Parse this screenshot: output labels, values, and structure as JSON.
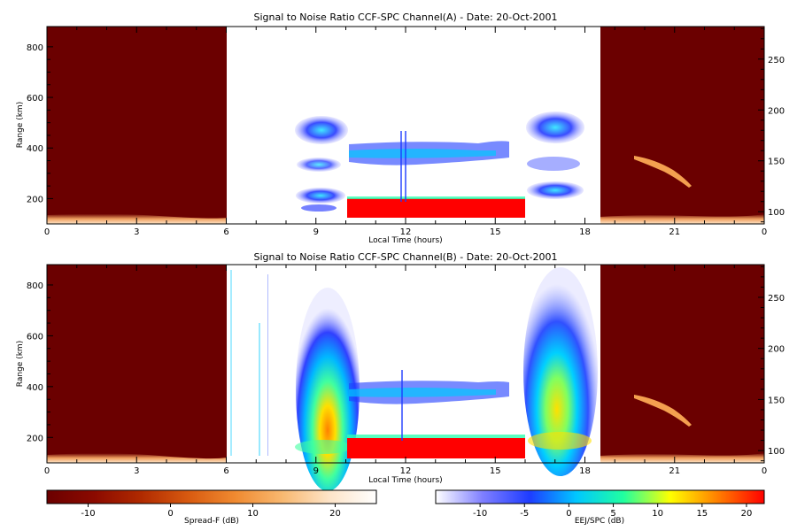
{
  "chart_data": [
    {
      "type": "heatmap",
      "title": "Signal to Noise Ratio CCF-SPC Channel(A) - Date: 20-Oct-2001",
      "xlabel": "Local Time (hours)",
      "ylabel": "Range (km)",
      "x_ticks": [
        "0",
        "3",
        "6",
        "9",
        "12",
        "15",
        "18",
        "21",
        "0"
      ],
      "y_ticks": [
        200,
        400,
        600,
        800
      ],
      "y_right_ticks": [
        100,
        150,
        200,
        250
      ],
      "xlim": [
        0,
        24
      ],
      "ylim": [
        100,
        880
      ],
      "y_right_lim": [
        88,
        282
      ],
      "segments": [
        {
          "name": "Spread-F",
          "x": [
            0,
            6
          ]
        },
        {
          "name": "EEJ/SPC",
          "x": [
            10,
            16
          ]
        },
        {
          "name": "Spread-F",
          "x": [
            18.6,
            24
          ]
        }
      ]
    },
    {
      "type": "heatmap",
      "title": "Signal to Noise Ratio CCF-SPC Channel(B) - Date: 20-Oct-2001",
      "xlabel": "Local Time (hours)",
      "ylabel": "Range (km)",
      "x_ticks": [
        "0",
        "3",
        "6",
        "9",
        "12",
        "15",
        "18",
        "21",
        "0"
      ],
      "y_ticks": [
        200,
        400,
        600,
        800
      ],
      "y_right_ticks": [
        100,
        150,
        200,
        250
      ],
      "xlim": [
        0,
        24
      ],
      "ylim": [
        100,
        880
      ],
      "y_right_lim": [
        88,
        282
      ],
      "segments": [
        {
          "name": "Spread-F",
          "x": [
            0,
            6
          ]
        },
        {
          "name": "EEJ/SPC",
          "x": [
            10,
            16
          ]
        },
        {
          "name": "Spread-F",
          "x": [
            18.6,
            24
          ]
        }
      ]
    }
  ],
  "colorbars": [
    {
      "label": "Spread-F (dB)",
      "ticks": [
        "-10",
        "0",
        "10",
        "20"
      ],
      "range": [
        -15,
        25
      ],
      "colors": [
        "#6b0000",
        "#8b0a00",
        "#b02a00",
        "#d85a10",
        "#f08a30",
        "#f8b870",
        "#fde4c8",
        "#ffffff"
      ]
    },
    {
      "label": "EEJ/SPC (dB)",
      "ticks": [
        "-10",
        "-5",
        "0",
        "5",
        "10",
        "15",
        "20"
      ],
      "range": [
        -15,
        22
      ],
      "colors": [
        "#ffffff",
        "#7f7fff",
        "#1e3cff",
        "#00c8ff",
        "#20ffa0",
        "#ffff00",
        "#ff8000",
        "#ff0000"
      ]
    }
  ]
}
